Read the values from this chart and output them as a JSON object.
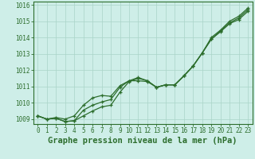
{
  "background_color": "#ceeee8",
  "grid_color": "#aad4c8",
  "line_color": "#2d6e2d",
  "xlabel": "Graphe pression niveau de la mer (hPa)",
  "xlim": [
    -0.5,
    23.5
  ],
  "ylim": [
    1008.7,
    1016.2
  ],
  "yticks": [
    1009,
    1010,
    1011,
    1012,
    1013,
    1014,
    1015,
    1016
  ],
  "xticks": [
    0,
    1,
    2,
    3,
    4,
    5,
    6,
    7,
    8,
    9,
    10,
    11,
    12,
    13,
    14,
    15,
    16,
    17,
    18,
    19,
    20,
    21,
    22,
    23
  ],
  "series": [
    [
      1009.2,
      1009.0,
      1009.05,
      1008.85,
      1008.9,
      1009.2,
      1009.5,
      1009.75,
      1009.85,
      1010.65,
      1011.3,
      1011.5,
      1011.35,
      1010.95,
      1011.1,
      1011.1,
      1011.65,
      1012.25,
      1013.05,
      1013.9,
      1014.35,
      1014.85,
      1015.1,
      1015.6
    ],
    [
      1009.2,
      1009.0,
      1009.05,
      1008.85,
      1008.9,
      1009.55,
      1009.85,
      1010.05,
      1010.2,
      1010.95,
      1011.35,
      1011.55,
      1011.35,
      1010.95,
      1011.1,
      1011.1,
      1011.65,
      1012.25,
      1013.05,
      1013.9,
      1014.4,
      1014.9,
      1015.2,
      1015.7
    ],
    [
      1009.2,
      1009.0,
      1009.1,
      1009.0,
      1009.2,
      1009.85,
      1010.3,
      1010.45,
      1010.4,
      1011.05,
      1011.35,
      1011.35,
      1011.3,
      1010.95,
      1011.1,
      1011.1,
      1011.65,
      1012.25,
      1013.05,
      1014.0,
      1014.45,
      1015.0,
      1015.3,
      1015.8
    ]
  ],
  "tick_fontsize": 5.5,
  "axis_label_fontsize": 7.5,
  "line_width": 0.9,
  "marker_size": 3.0
}
